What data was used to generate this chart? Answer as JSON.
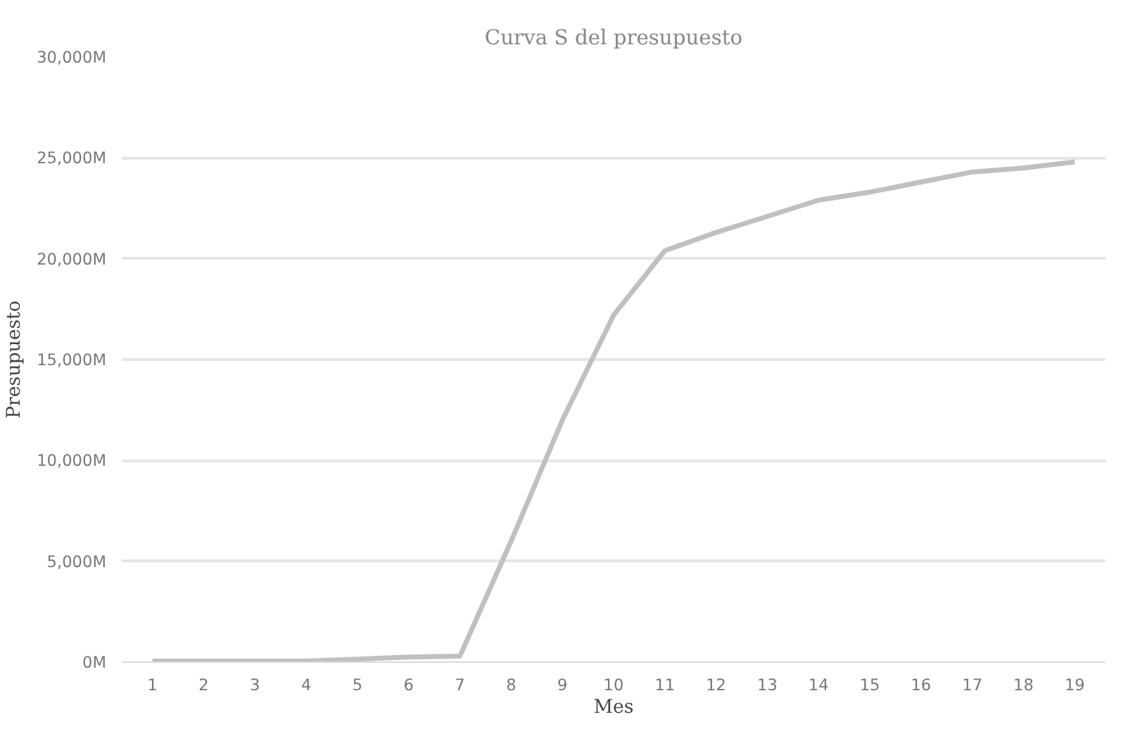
{
  "chart_data": {
    "type": "line",
    "title": "Curva S del presupuesto",
    "xlabel": "Mes",
    "ylabel": "Presupuesto",
    "x": [
      1,
      2,
      3,
      4,
      5,
      6,
      7,
      8,
      9,
      10,
      11,
      12,
      13,
      14,
      15,
      16,
      17,
      18,
      19
    ],
    "series": [
      {
        "color": "#c0c0c0",
        "values": [
          50,
          50,
          50,
          50,
          150,
          250,
          300,
          6000,
          12000,
          17200,
          20400,
          21300,
          22100,
          22900,
          23300,
          23800,
          24300,
          24500,
          24800
        ]
      }
    ],
    "xlim": [
      0.4,
      19.6
    ],
    "xticks": [
      1,
      2,
      3,
      4,
      5,
      6,
      7,
      8,
      9,
      10,
      11,
      12,
      13,
      14,
      15,
      16,
      17,
      18,
      19
    ],
    "ylim": [
      0,
      30000
    ],
    "yticks": [
      {
        "value": 0,
        "label": "0M"
      },
      {
        "value": 5000,
        "label": "5,000M"
      },
      {
        "value": 10000,
        "label": "10,000M"
      },
      {
        "value": 15000,
        "label": "15,000M"
      },
      {
        "value": 20000,
        "label": "20,000M"
      },
      {
        "value": 25000,
        "label": "25,000M"
      },
      {
        "value": 30000,
        "label": "30,000M"
      }
    ],
    "grid": "y",
    "marker": "none",
    "line_style": "solid"
  }
}
